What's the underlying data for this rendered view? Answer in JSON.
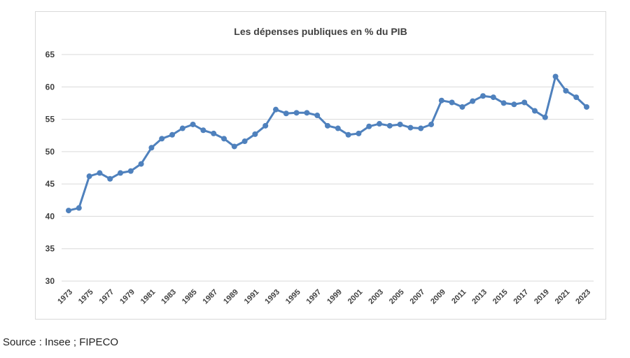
{
  "chart_data": {
    "type": "line",
    "title": "Les dépenses publiques  en % du PIB",
    "xlabel": "",
    "ylabel": "",
    "ylim": [
      30,
      65
    ],
    "yticks": [
      30,
      35,
      40,
      45,
      50,
      55,
      60,
      65
    ],
    "grid": true,
    "legend": "none",
    "color": "#4f81bd",
    "x": [
      1973,
      1974,
      1975,
      1976,
      1977,
      1978,
      1979,
      1980,
      1981,
      1982,
      1983,
      1984,
      1985,
      1986,
      1987,
      1988,
      1989,
      1990,
      1991,
      1992,
      1993,
      1994,
      1995,
      1996,
      1997,
      1998,
      1999,
      2000,
      2001,
      2002,
      2003,
      2004,
      2005,
      2006,
      2007,
      2008,
      2009,
      2010,
      2011,
      2012,
      2013,
      2014,
      2015,
      2016,
      2017,
      2018,
      2019,
      2020,
      2021,
      2022,
      2023
    ],
    "xtick_labels": [
      "1973",
      "1975",
      "1977",
      "1979",
      "1981",
      "1983",
      "1985",
      "1987",
      "1989",
      "1991",
      "1993",
      "1995",
      "1997",
      "1999",
      "2001",
      "2003",
      "2005",
      "2007",
      "2009",
      "2011",
      "2013",
      "2015",
      "2017",
      "2019",
      "2021",
      "2023"
    ],
    "series": [
      {
        "values": [
          40.9,
          41.3,
          46.2,
          46.7,
          45.8,
          46.7,
          47.0,
          48.1,
          50.6,
          52.0,
          52.6,
          53.6,
          54.2,
          53.3,
          52.8,
          52.0,
          50.8,
          51.6,
          52.7,
          54.0,
          56.5,
          55.9,
          56.0,
          56.0,
          55.6,
          54.0,
          53.6,
          52.6,
          52.8,
          53.9,
          54.3,
          54.0,
          54.2,
          53.7,
          53.6,
          54.2,
          57.9,
          57.6,
          56.9,
          57.8,
          58.6,
          58.4,
          57.5,
          57.3,
          57.6,
          56.3,
          55.3,
          61.6,
          59.4,
          58.4,
          56.9
        ]
      }
    ]
  },
  "source_text": "Source : Insee ; FIPECO"
}
